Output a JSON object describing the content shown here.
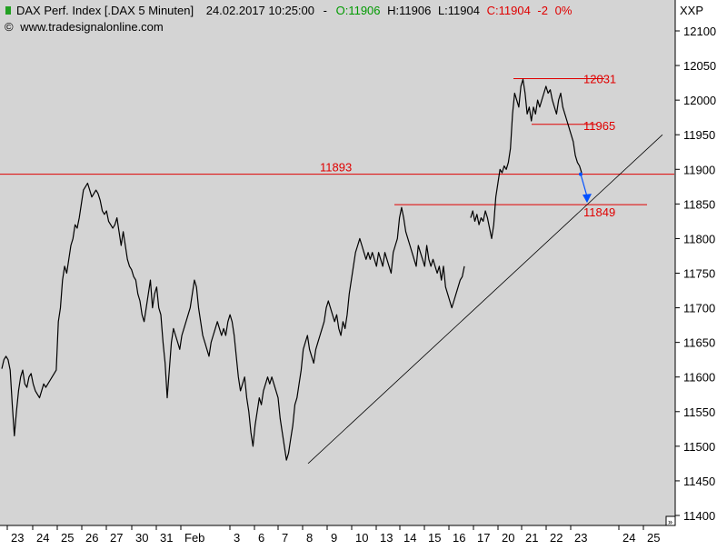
{
  "header": {
    "instrument": "DAX Perf. Index [.DAX  5 Minuten]",
    "datetime": "24.02.2017 10:25:00",
    "separator": "-",
    "open": "O:11906",
    "high": "H:11906",
    "low": "L:11904",
    "close": "C:11904",
    "change": "-2",
    "change_pct": "0%",
    "copyright_symbol": "©",
    "source": "www.tradesignalonline.com"
  },
  "axis": {
    "symbol": "XXP",
    "scroll_arrow": "»"
  },
  "colors": {
    "background": "#d4d4d4",
    "price": "#000000",
    "levels": "#e00000",
    "open_text": "#009a00",
    "arrow": "#0050ff",
    "trendline": "#000000",
    "icon_green": "#22a022"
  },
  "chart_data": {
    "type": "line",
    "title": "DAX Perf. Index [.DAX  5 Minuten]",
    "xlabel": "",
    "ylabel": "",
    "ylim": [
      11385,
      12130
    ],
    "y_ticks": [
      11400,
      11450,
      11500,
      11550,
      11600,
      11650,
      11700,
      11750,
      11800,
      11850,
      11900,
      11950,
      12000,
      12050,
      12100
    ],
    "x_ticks": [
      "23",
      "24",
      "25",
      "26",
      "27",
      "30",
      "31",
      "Feb",
      "3",
      "6",
      "7",
      "8",
      "9",
      "10",
      "13",
      "14",
      "15",
      "16",
      "17",
      "20",
      "21",
      "22",
      "23",
      "24",
      "25"
    ],
    "grid": false,
    "series": [
      {
        "values": [
          11612,
          11625,
          11630,
          11625,
          11610,
          11560,
          11515,
          11550,
          11580,
          11600,
          11610,
          11590,
          11585,
          11600,
          11605,
          11590,
          11580,
          11575,
          11570,
          11580,
          11590,
          11585,
          11590,
          11595,
          11600,
          11605,
          11610,
          11680,
          11700,
          11740,
          11760,
          11750,
          11770,
          11790,
          11800,
          11820,
          11815,
          11830,
          11850,
          11870,
          11875,
          11880,
          11870,
          11860,
          11865,
          11870,
          11865,
          11855,
          11840,
          11835,
          11840,
          11825,
          11820,
          11815,
          11820,
          11830,
          11810,
          11790,
          11810,
          11790,
          11770,
          11760,
          11755,
          11745,
          11740,
          11720,
          11710,
          11690,
          11680,
          11700,
          11720,
          11740,
          11700,
          11720,
          11730,
          11700,
          11690,
          11650,
          11620,
          11570,
          11610,
          11650,
          11670,
          11660,
          11650,
          11640,
          11660,
          11670,
          11680,
          11690,
          11700,
          11720,
          11740,
          11730,
          11700,
          11680,
          11660,
          11650,
          11640,
          11630,
          11650,
          11660,
          11670,
          11680,
          11670,
          11660,
          11670,
          11660,
          11680,
          11690,
          11680,
          11660,
          11630,
          11600,
          11580,
          11590,
          11600,
          11570,
          11550,
          11520,
          11500,
          11530,
          11550,
          11570,
          11560,
          11580,
          11590,
          11600,
          11590,
          11600,
          11590,
          11580,
          11570,
          11540,
          11520,
          11500,
          11480,
          11490,
          11510,
          11530,
          11560,
          11570,
          11590,
          11610,
          11640,
          11650,
          11660,
          11640,
          11630,
          11620,
          11640,
          11650,
          11660,
          11670,
          11680,
          11700,
          11710,
          11700,
          11690,
          11680,
          11690,
          11670,
          11660,
          11680,
          11670,
          11690,
          11720,
          11740,
          11760,
          11780,
          11790,
          11800,
          11790,
          11780,
          11770,
          11780,
          11770,
          11780,
          11770,
          11760,
          11780,
          11770,
          11760,
          11780,
          11770,
          11760,
          11750,
          11780,
          11790,
          11800,
          11830,
          11845,
          11830,
          11810,
          11800,
          11790,
          11780,
          11770,
          11760,
          11790,
          11780,
          11770,
          11760,
          11790,
          11770,
          11760,
          11770,
          11760,
          11750,
          11760,
          11740,
          11760,
          11730,
          11720,
          11710,
          11700,
          11710,
          11720,
          11730,
          11740,
          11745,
          11760,
          null,
          null,
          11830,
          11840,
          11825,
          11835,
          11820,
          11830,
          11825,
          11840,
          11830,
          11815,
          11800,
          11820,
          11860,
          11880,
          11900,
          11895,
          11905,
          11900,
          11910,
          11930,
          11980,
          12010,
          12000,
          11990,
          12020,
          12030,
          12010,
          11980,
          11990,
          11970,
          11990,
          11980,
          12000,
          11990,
          12000,
          12010,
          12020,
          12010,
          12015,
          12000,
          11990,
          11980,
          12000,
          12010,
          11990,
          11980,
          11970,
          11960,
          11950,
          11940,
          11920,
          11910,
          11905,
          11895
        ]
      }
    ],
    "annotations": [
      {
        "type": "hline",
        "value": 11893,
        "label": "11893"
      },
      {
        "type": "segment",
        "value": 12031,
        "label": "12031"
      },
      {
        "type": "segment",
        "value": 11965,
        "label": "11965"
      },
      {
        "type": "segment",
        "value": 11849,
        "label": "11849"
      },
      {
        "type": "trendline",
        "from": 11475,
        "to": 11950
      },
      {
        "type": "arrow",
        "from": 11893,
        "to": 11849
      }
    ]
  }
}
